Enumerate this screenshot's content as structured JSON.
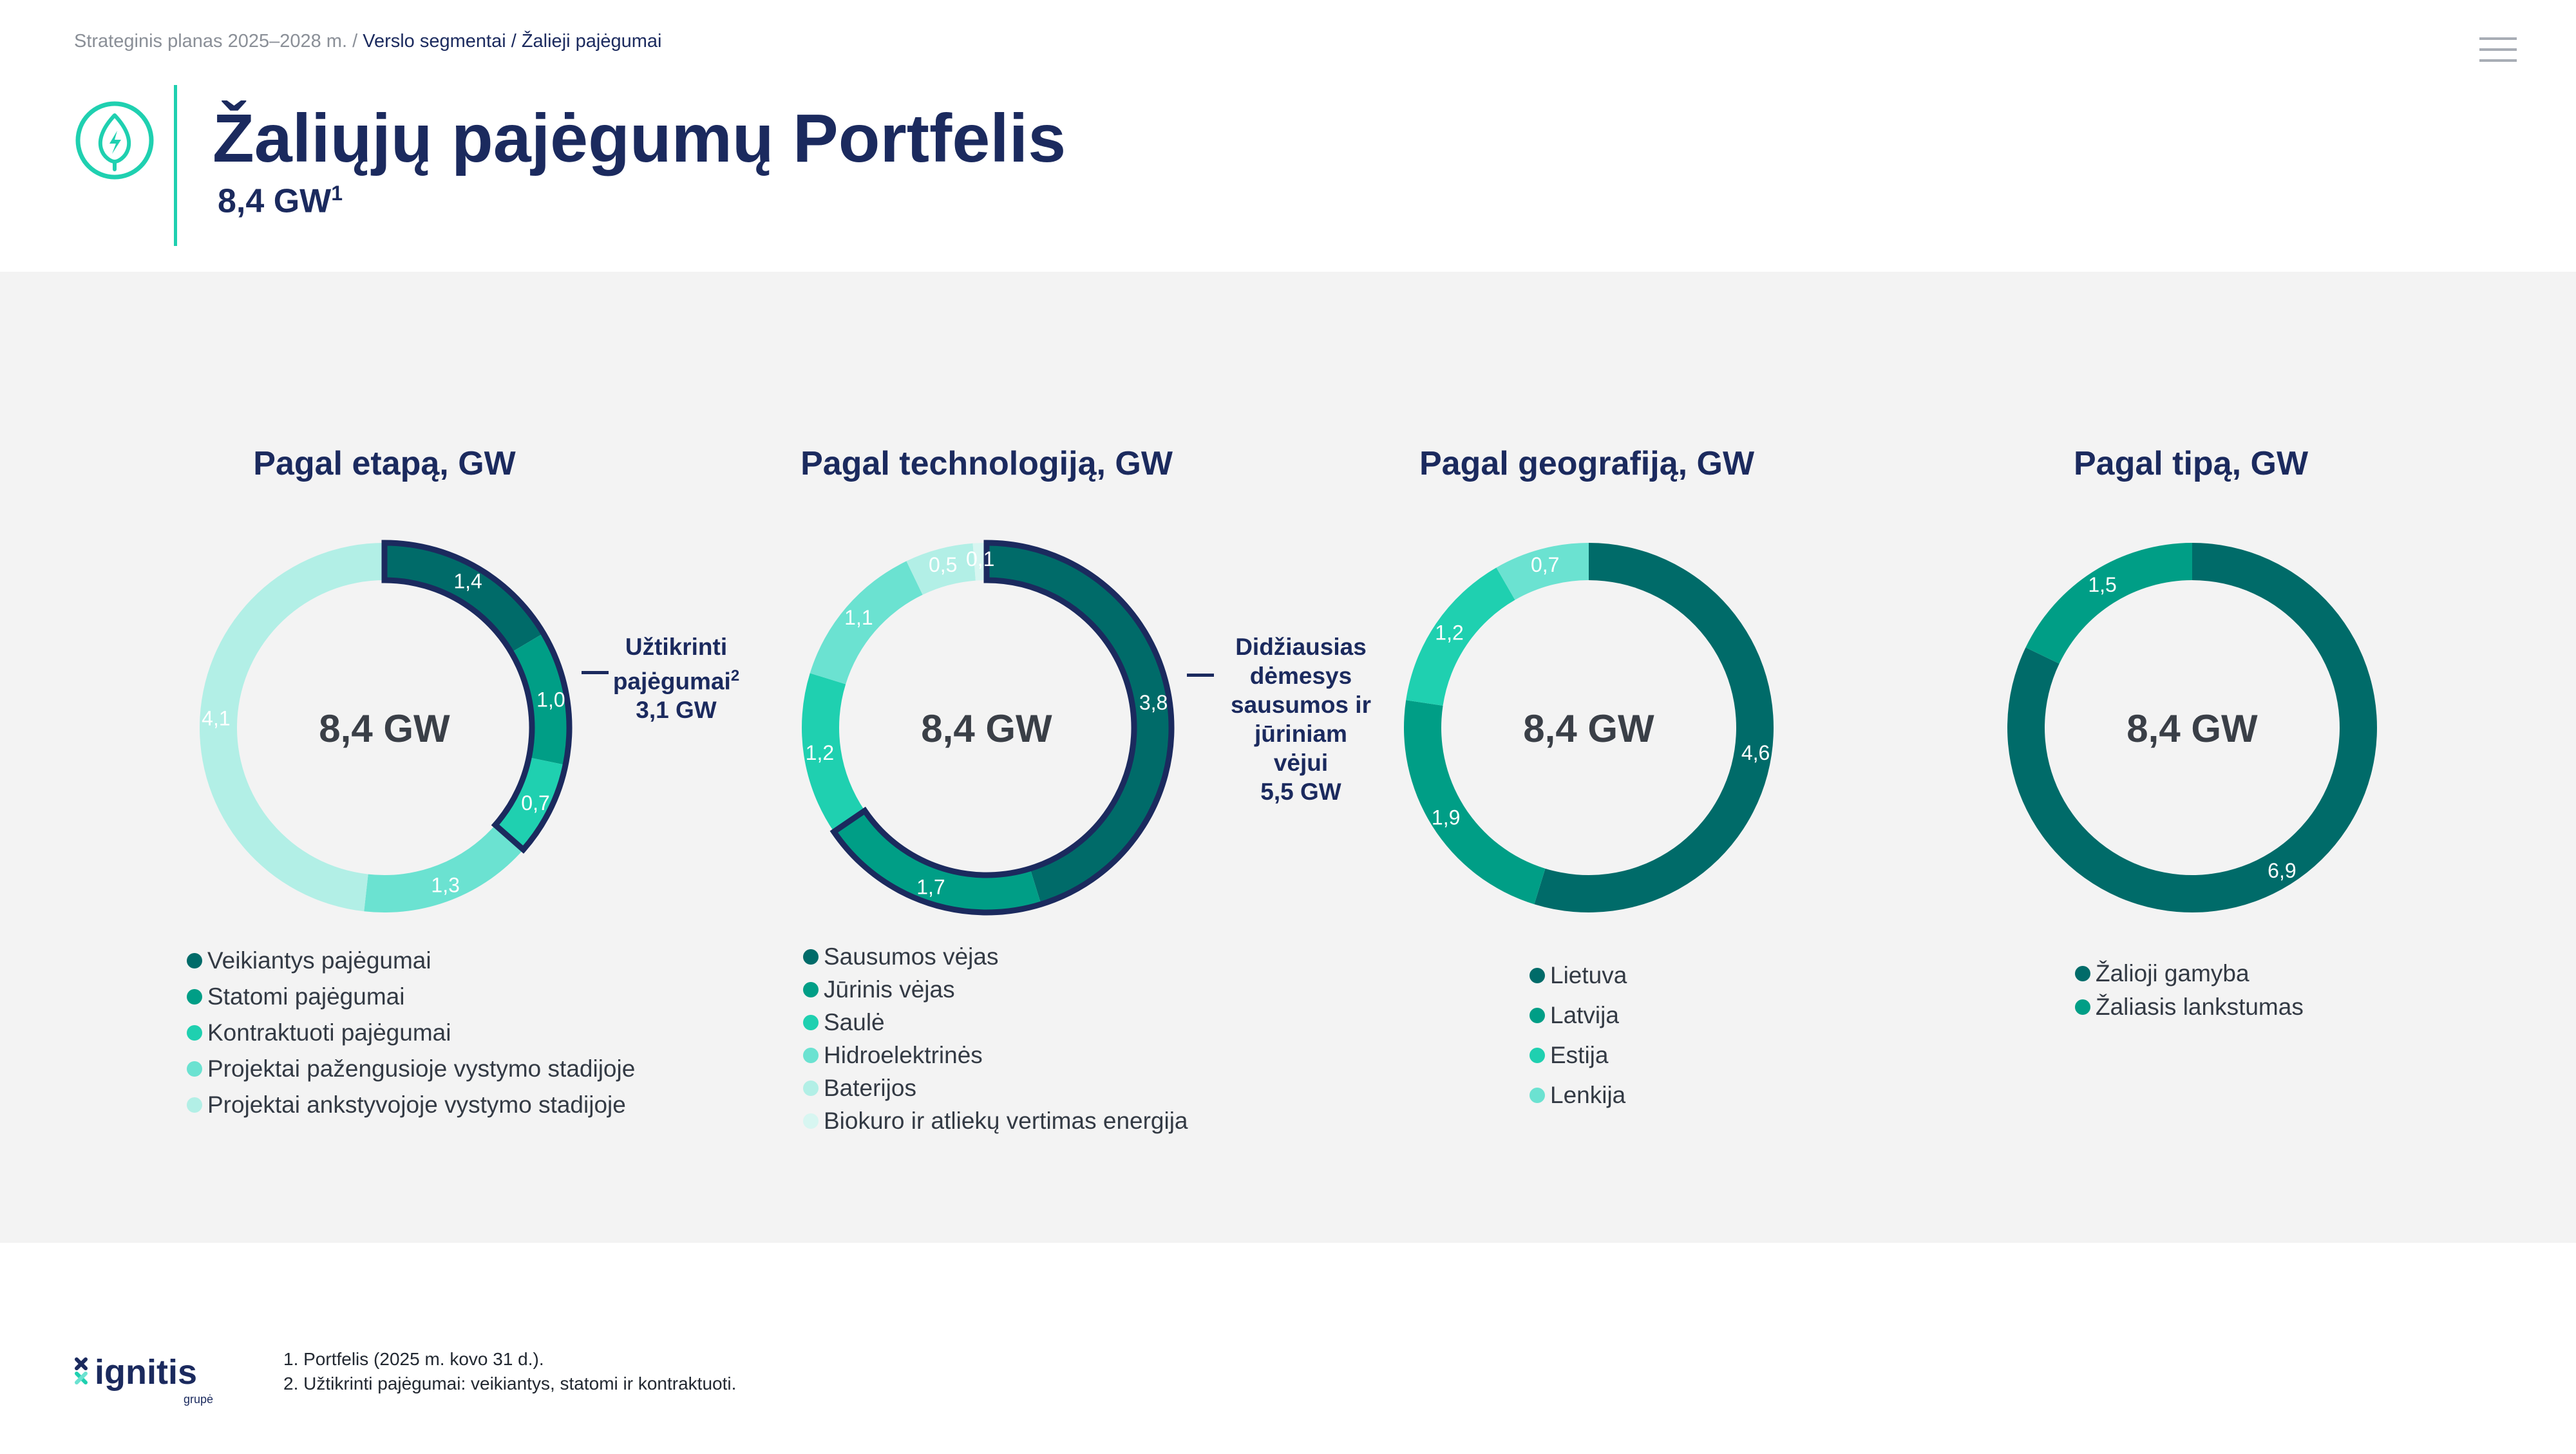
{
  "breadcrumb": {
    "root": "Strateginis planas 2025–2028 m. /",
    "current": "Verslo segmentai / Žalieji pajėgumai"
  },
  "header": {
    "title": "Žaliųjų pajėgumų Portfelis",
    "subtitle": "8,4 GW",
    "subtitle_sup": "1"
  },
  "colors": {
    "navy": "#1b2a5e",
    "teal_dark": "#006b69",
    "teal": "#009e86",
    "turquoise": "#1fd0b0",
    "aqua": "#6be2d1",
    "aqua_light": "#b2efe6",
    "aqua_lightest": "#d7f6f1",
    "panel_bg": "#f3f3f3"
  },
  "chart_data": [
    {
      "type": "donut",
      "title": "Pagal etapą, GW",
      "center_label": "8,4 GW",
      "categories": [
        "Veikiantys pajėgumai",
        "Statomi pajėgumai",
        "Kontraktuoti pajėgumai",
        "Projektai pažengusioje vystymo stadijoje",
        "Projektai ankstyvojoje vystymo stadijoje"
      ],
      "values": [
        1.4,
        1.0,
        0.7,
        1.3,
        4.1
      ],
      "value_labels": [
        "1,4",
        "1,0",
        "0,7",
        "1,3",
        "4,1"
      ],
      "colors": [
        "#006b69",
        "#009e86",
        "#1fd0b0",
        "#6be2d1",
        "#b2efe6"
      ],
      "highlight": {
        "segments": [
          0,
          1,
          2
        ],
        "label_lines": [
          "Užtikrinti",
          "pajėgumai",
          "3,1 GW"
        ],
        "label_sup": "2"
      }
    },
    {
      "type": "donut",
      "title": "Pagal technologiją, GW",
      "center_label": "8,4 GW",
      "categories": [
        "Sausumos vėjas",
        "Jūrinis vėjas",
        "Saulė",
        "Hidroelektrinės",
        "Baterijos",
        "Biokuro ir atliekų vertimas energija"
      ],
      "values": [
        3.8,
        1.7,
        1.2,
        1.1,
        0.5,
        0.1
      ],
      "value_labels": [
        "3,8",
        "1,7",
        "1,2",
        "1,1",
        "0,5",
        "0,1"
      ],
      "colors": [
        "#006b69",
        "#009e86",
        "#1fd0b0",
        "#6be2d1",
        "#b2efe6",
        "#d7f6f1"
      ],
      "highlight": {
        "segments": [
          0,
          1
        ],
        "label_lines": [
          "Didžiausias",
          "dėmesys",
          "sausumos ir",
          "jūriniam",
          "vėjui",
          "5,5 GW"
        ]
      }
    },
    {
      "type": "donut",
      "title": "Pagal geografiją, GW",
      "center_label": "8,4 GW",
      "categories": [
        "Lietuva",
        "Latvija",
        "Estija",
        "Lenkija"
      ],
      "values": [
        4.6,
        1.9,
        1.2,
        0.7
      ],
      "value_labels": [
        "4,6",
        "1,9",
        "1,2",
        "0,7"
      ],
      "colors": [
        "#006b69",
        "#009e86",
        "#1fd0b0",
        "#6be2d1"
      ]
    },
    {
      "type": "donut",
      "title": "Pagal tipą, GW",
      "center_label": "8,4 GW",
      "categories": [
        "Žalioji gamyba",
        "Žaliasis lankstumas"
      ],
      "values": [
        6.9,
        1.5
      ],
      "value_labels": [
        "6,9",
        "1,5"
      ],
      "colors": [
        "#006b69",
        "#009e86"
      ]
    }
  ],
  "footnotes": [
    "1. Portfelis (2025 m. kovo 31 d.).",
    "2. Užtikrinti pajėgumai: veikiantys, statomi ir kontraktuoti."
  ],
  "logo": {
    "name": "ignitis",
    "tagline": "grupė",
    "icon": "ignitis-x-icon"
  },
  "icons": {
    "header": "leaf-bolt-icon",
    "menu": "hamburger-menu-icon"
  }
}
